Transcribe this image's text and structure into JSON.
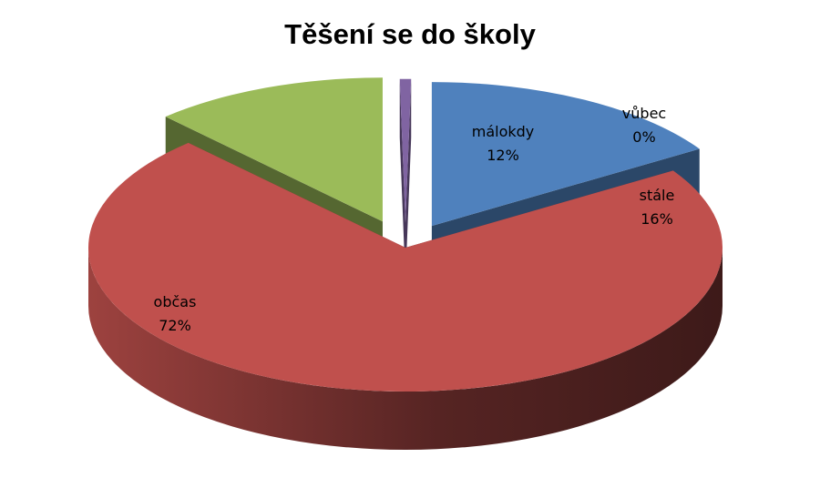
{
  "chart_data": {
    "type": "pie",
    "title": "Těšení se do školy",
    "slices": [
      {
        "label": "stále",
        "value": 16,
        "value_label": "16%",
        "color": "#4f81bd"
      },
      {
        "label": "občas",
        "value": 72,
        "value_label": "72%",
        "color": "#c0504d"
      },
      {
        "label": "málokdy",
        "value": 12,
        "value_label": "12%",
        "color": "#9bbb59"
      },
      {
        "label": "vůbec",
        "value": 0,
        "value_label": "0%",
        "color": "#8064a2"
      }
    ],
    "legend": "none",
    "three_d": true,
    "exploded": true
  }
}
